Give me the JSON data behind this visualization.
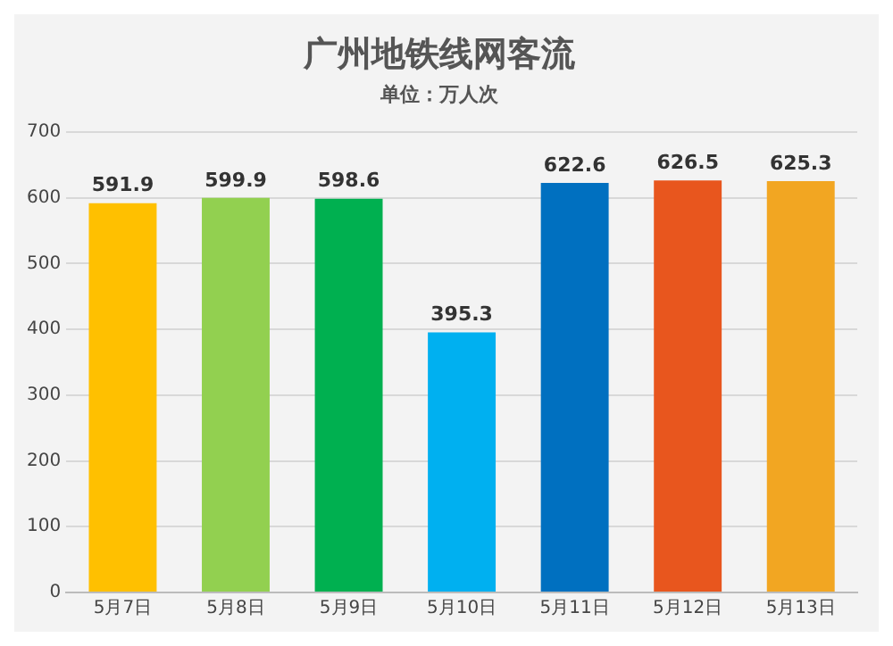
{
  "chart_data": {
    "type": "bar",
    "title": "广州地铁线网客流",
    "subtitle": "单位：万人次",
    "categories": [
      "5月7日",
      "5月8日",
      "5月9日",
      "5月10日",
      "5月11日",
      "5月12日",
      "5月13日"
    ],
    "values": [
      591.9,
      599.9,
      598.6,
      395.3,
      622.6,
      626.5,
      625.3
    ],
    "colors": [
      "#ffc000",
      "#92d050",
      "#00b050",
      "#00b0f0",
      "#0070c0",
      "#e8561e",
      "#f2a622"
    ],
    "ylim": [
      0,
      700
    ],
    "yticks": [
      0,
      100,
      200,
      300,
      400,
      500,
      600,
      700
    ],
    "grid": "y",
    "legend": false,
    "data_labels": true
  }
}
